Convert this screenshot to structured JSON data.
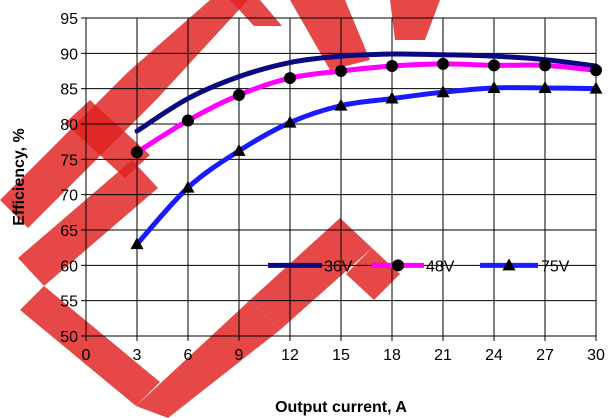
{
  "chart_data": {
    "type": "line",
    "title": "",
    "xlabel": "Output current, A",
    "ylabel": "Efficiency, %",
    "xlim": [
      0,
      30
    ],
    "ylim": [
      50,
      95
    ],
    "xticks": [
      0,
      3,
      6,
      9,
      12,
      15,
      18,
      21,
      24,
      27,
      30
    ],
    "yticks": [
      50,
      55,
      60,
      65,
      70,
      75,
      80,
      85,
      90,
      95
    ],
    "grid": true,
    "legend_position": "lower-right",
    "series": [
      {
        "name": "36V",
        "color": "#0a0a80",
        "marker": "none",
        "x": [
          3,
          6,
          9,
          12,
          15,
          18,
          21,
          24,
          27,
          30
        ],
        "y": [
          79,
          83.6,
          86.7,
          88.7,
          89.6,
          89.9,
          89.8,
          89.6,
          89.1,
          88.2
        ]
      },
      {
        "name": "48V",
        "color": "#ff00ff",
        "marker": "circle",
        "x": [
          3,
          6,
          9,
          12,
          15,
          18,
          21,
          24,
          27,
          30
        ],
        "y": [
          76,
          80.5,
          84.1,
          86.5,
          87.5,
          88.2,
          88.5,
          88.3,
          88.3,
          87.6
        ]
      },
      {
        "name": "75V",
        "color": "#1a1aff",
        "marker": "triangle",
        "x": [
          3,
          6,
          9,
          12,
          15,
          18,
          21,
          24,
          27,
          30
        ],
        "y": [
          63,
          71,
          76.2,
          80.2,
          82.6,
          83.6,
          84.5,
          85.1,
          85.1,
          85
        ]
      }
    ]
  }
}
